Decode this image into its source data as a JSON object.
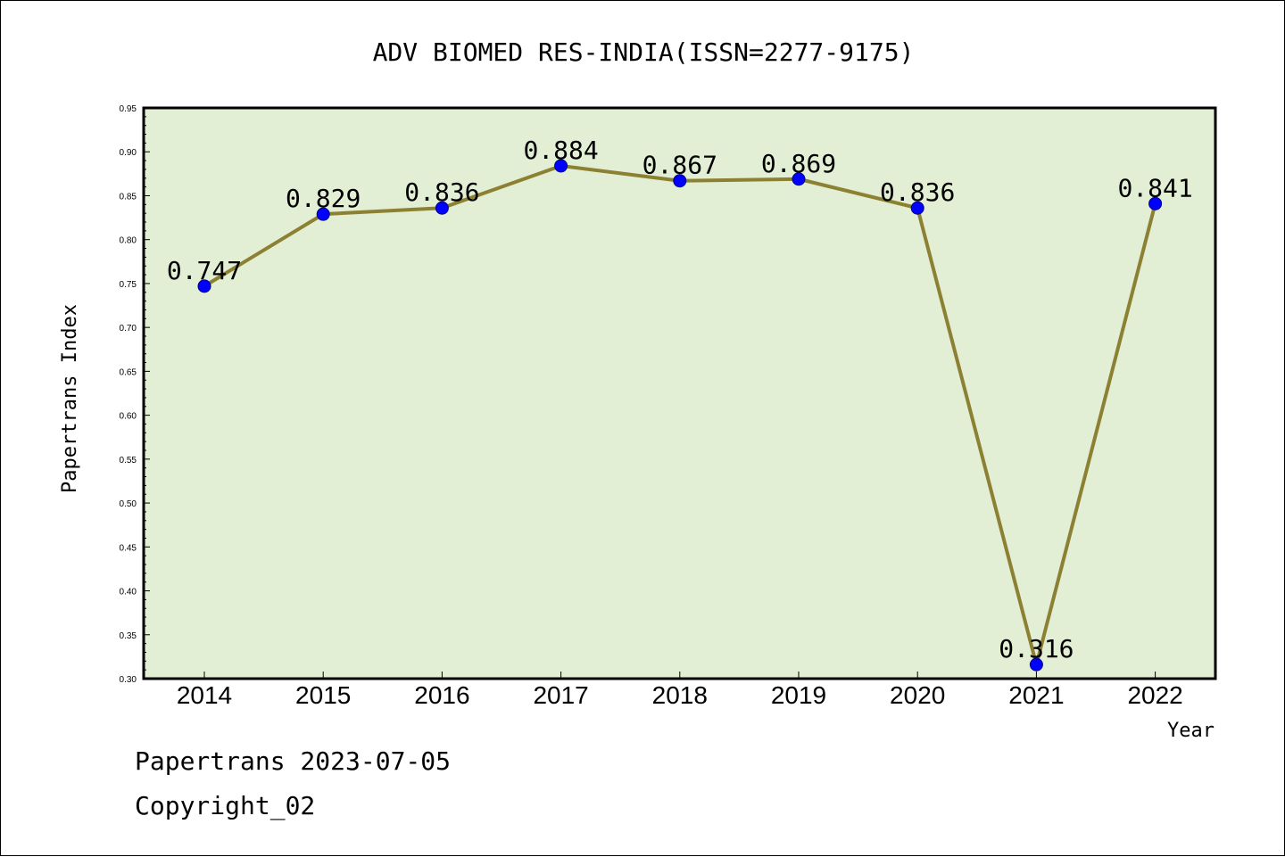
{
  "chart_data": {
    "type": "line",
    "title": "ADV BIOMED RES-INDIA(ISSN=2277-9175)",
    "xlabel": "Year",
    "ylabel": "Papertrans Index",
    "categories": [
      "2014",
      "2015",
      "2016",
      "2017",
      "2018",
      "2019",
      "2020",
      "2021",
      "2022"
    ],
    "values": [
      0.747,
      0.829,
      0.836,
      0.884,
      0.867,
      0.869,
      0.836,
      0.316,
      0.841
    ],
    "data_labels": [
      "0.747",
      "0.829",
      "0.836",
      "0.884",
      "0.867",
      "0.869",
      "0.836",
      "0.316",
      "0.841"
    ],
    "ylim": [
      0.3,
      0.95
    ],
    "yticks": [
      "0.30",
      "0.35",
      "0.40",
      "0.45",
      "0.50",
      "0.55",
      "0.60",
      "0.65",
      "0.70",
      "0.75",
      "0.80",
      "0.85",
      "0.90",
      "0.95"
    ],
    "grid": false,
    "colors": {
      "plot_background": "#e2efd5",
      "line": "#8c8132",
      "marker": "#0000ff",
      "marker_edge": "#000080",
      "frame": "#000000"
    }
  },
  "footer": {
    "line1": "Papertrans 2023-07-05",
    "line2": "Copyright_02"
  }
}
